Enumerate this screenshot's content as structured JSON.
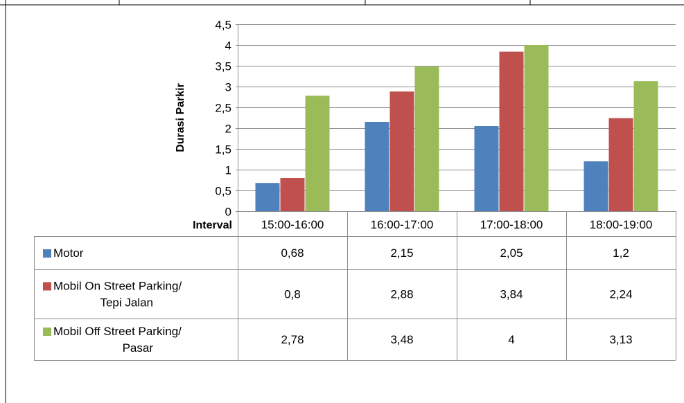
{
  "chart_data": {
    "type": "bar",
    "title": "",
    "ylabel": "Durasi Parkir",
    "xlabel": "Interval",
    "ylim": [
      0,
      4.5
    ],
    "yticks": [
      "0",
      "0,5",
      "1",
      "1,5",
      "2",
      "2,5",
      "3",
      "3,5",
      "4",
      "4,5"
    ],
    "categories": [
      "15:00-16:00",
      "16:00-17:00",
      "17:00-18:00",
      "18:00-19:00"
    ],
    "series": [
      {
        "name_lines": [
          "Motor"
        ],
        "color": "#4F81BD",
        "values": [
          0.68,
          2.15,
          2.05,
          1.2
        ],
        "labels": [
          "0,68",
          "2,15",
          "2,05",
          "1,2"
        ]
      },
      {
        "name_lines": [
          "Mobil On Street Parking/",
          "Tepi Jalan"
        ],
        "color": "#C0504D",
        "values": [
          0.8,
          2.88,
          3.84,
          2.24
        ],
        "labels": [
          "0,8",
          "2,88",
          "3,84",
          "2,24"
        ]
      },
      {
        "name_lines": [
          "Mobil Off Street Parking/",
          "Pasar"
        ],
        "color": "#9BBB59",
        "values": [
          2.78,
          3.48,
          4,
          3.13
        ],
        "labels": [
          "2,78",
          "3,48",
          "4",
          "3,13"
        ]
      }
    ],
    "grid": true,
    "legend": "data-table"
  }
}
